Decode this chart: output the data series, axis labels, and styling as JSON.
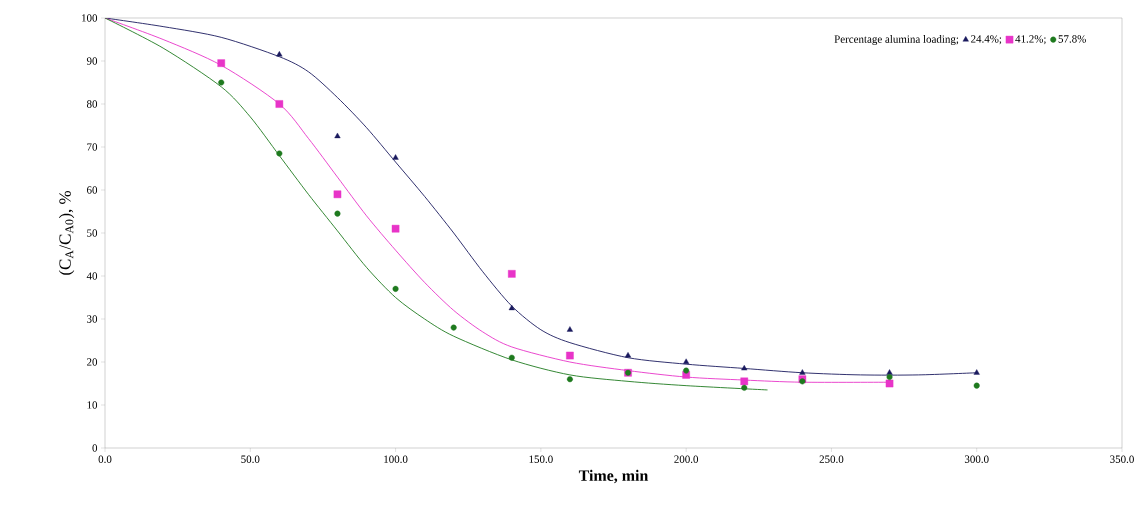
{
  "chart_data": {
    "type": "scatter",
    "xlabel": "Time, min",
    "ylabel": "(C$_{A}$/C$_{A0}$), %",
    "legend_title": "Percentage alumina loading;",
    "legend": "top right",
    "grid": false,
    "xlim": [
      0,
      350
    ],
    "ylim": [
      0,
      100
    ],
    "xticks": [
      {
        "value": 0,
        "label": "0.0"
      },
      {
        "value": 50,
        "label": "50.0"
      },
      {
        "value": 100,
        "label": "100.0"
      },
      {
        "value": 150,
        "label": "150.0"
      },
      {
        "value": 200,
        "label": "200.0"
      },
      {
        "value": 250,
        "label": "250.0"
      },
      {
        "value": 300,
        "label": "300.0"
      },
      {
        "value": 350,
        "label": "350.0"
      }
    ],
    "yticks": [
      0,
      10,
      20,
      30,
      40,
      50,
      60,
      70,
      80,
      90,
      100
    ],
    "series": [
      {
        "name": "24.4%;",
        "marker": "triangle",
        "color": "#1a1a5e",
        "x": [
          60,
          80,
          100,
          140,
          160,
          180,
          200,
          220,
          240,
          270,
          300
        ],
        "values": [
          91.5,
          72.5,
          67.5,
          32.5,
          27.5,
          21.5,
          20,
          18.5,
          17.5,
          17.5,
          17.5
        ]
      },
      {
        "name": "41.2%;",
        "marker": "square",
        "color": "#e834c8",
        "x": [
          40,
          60,
          80,
          100,
          140,
          160,
          180,
          200,
          220,
          240,
          270
        ],
        "values": [
          89.5,
          80,
          59,
          51,
          40.5,
          21.5,
          17.5,
          17,
          15.5,
          16,
          15
        ]
      },
      {
        "name": "57.8%",
        "marker": "circle",
        "color": "#1e7a1e",
        "x": [
          40,
          60,
          80,
          100,
          120,
          140,
          160,
          180,
          200,
          220,
          240,
          270,
          300
        ],
        "values": [
          85,
          68.5,
          54.5,
          37,
          28,
          21,
          16,
          17.5,
          18,
          14,
          15.5,
          16.5,
          14.5
        ]
      },
      {
        "type": "line",
        "marker": "none",
        "color": "#1a1a5e",
        "x": [
          0,
          20,
          40,
          60,
          70,
          80,
          90,
          100,
          110,
          120,
          130,
          140,
          150,
          160,
          180,
          200,
          220,
          240,
          260,
          280,
          300
        ],
        "values": [
          100,
          98,
          95.5,
          91,
          87.5,
          81.5,
          74.5,
          66.5,
          58.5,
          50,
          41,
          33,
          27.5,
          24.5,
          21,
          19.5,
          18.5,
          17.5,
          17,
          17,
          17.5
        ]
      },
      {
        "type": "line",
        "marker": "none",
        "color": "#e834c8",
        "x": [
          0,
          20,
          40,
          60,
          70,
          80,
          90,
          100,
          110,
          120,
          130,
          140,
          160,
          180,
          200,
          220,
          240,
          270
        ],
        "values": [
          100,
          95,
          89,
          80,
          72,
          63,
          54,
          46,
          38.5,
          32,
          27,
          23.5,
          20,
          18,
          16.5,
          15.8,
          15.3,
          15.3
        ]
      },
      {
        "type": "line",
        "marker": "none",
        "color": "#1e7a1e",
        "x": [
          0,
          20,
          40,
          50,
          60,
          70,
          80,
          90,
          100,
          110,
          120,
          140,
          160,
          180,
          200,
          228
        ],
        "values": [
          100,
          93,
          84,
          77,
          68,
          59,
          50.5,
          42,
          35,
          30,
          26,
          20.5,
          17,
          15.5,
          14.5,
          13.5
        ]
      }
    ]
  }
}
